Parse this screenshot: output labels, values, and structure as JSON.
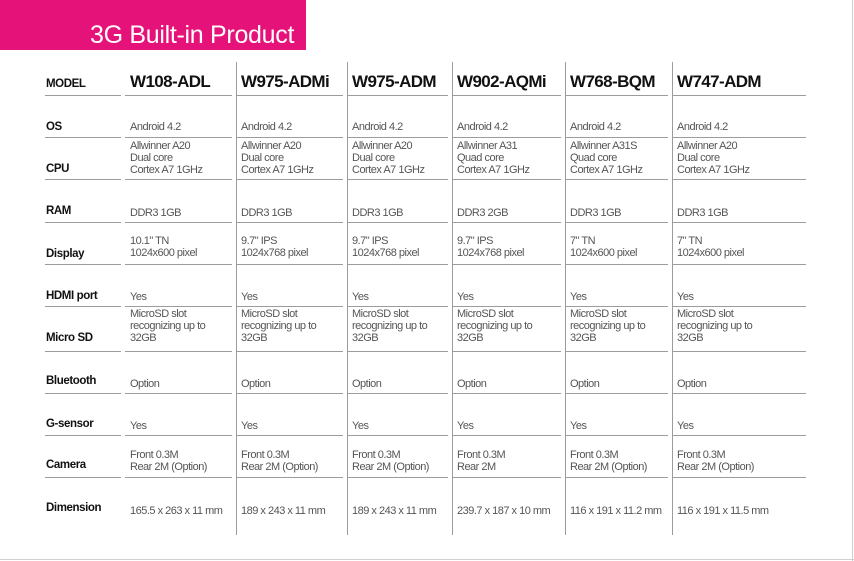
{
  "title": "3G Built-in Product",
  "rows": [
    {
      "label": "MODEL",
      "values": [
        "W108-ADL",
        "W975-ADMi",
        "W975-ADM",
        "W902-AQMi",
        "W768-BQM",
        "W747-ADM"
      ]
    },
    {
      "label": "OS",
      "values": [
        "Android 4.2",
        "Android 4.2",
        "Android 4.2",
        "Android 4.2",
        "Android 4.2",
        "Android 4.2"
      ]
    },
    {
      "label": "CPU",
      "values": [
        [
          "Allwinner A20",
          "Dual core",
          "Cortex A7 1GHz"
        ],
        [
          "Allwinner A20",
          "Dual core",
          "Cortex A7 1GHz"
        ],
        [
          "Allwinner A20",
          "Dual core",
          "Cortex A7 1GHz"
        ],
        [
          "Allwinner A31",
          "Quad core",
          "Cortex A7 1GHz"
        ],
        [
          "Allwinner A31S",
          "Quad core",
          "Cortex A7 1GHz"
        ],
        [
          "Allwinner A20",
          "Dual core",
          "Cortex A7 1GHz"
        ]
      ]
    },
    {
      "label": "RAM",
      "values": [
        "DDR3 1GB",
        "DDR3 1GB",
        "DDR3 1GB",
        "DDR3 2GB",
        "DDR3 1GB",
        "DDR3 1GB"
      ]
    },
    {
      "label": "Display",
      "values": [
        [
          "10.1\" TN",
          "1024x600 pixel"
        ],
        [
          "9.7\" IPS",
          "1024x768 pixel"
        ],
        [
          "9.7\" IPS",
          "1024x768 pixel"
        ],
        [
          "9.7\" IPS",
          "1024x768 pixel"
        ],
        [
          "7\" TN",
          "1024x600 pixel"
        ],
        [
          "7\" TN",
          "1024x600 pixel"
        ]
      ]
    },
    {
      "label": "HDMI port",
      "values": [
        "Yes",
        "Yes",
        "Yes",
        "Yes",
        "Yes",
        "Yes"
      ]
    },
    {
      "label": "Micro SD",
      "values": [
        [
          "MicroSD slot",
          "recognizing up to",
          "32GB"
        ],
        [
          "MicroSD slot",
          "recognizing up to",
          "32GB"
        ],
        [
          "MicroSD slot",
          "recognizing up to",
          "32GB"
        ],
        [
          "MicroSD slot",
          "recognizing up to",
          "32GB"
        ],
        [
          "MicroSD slot",
          "recognizing up to",
          "32GB"
        ],
        [
          "MicroSD slot",
          "recognizing up to",
          "32GB"
        ]
      ]
    },
    {
      "label": "Bluetooth",
      "values": [
        "Option",
        "Option",
        "Option",
        "Option",
        "Option",
        "Option"
      ]
    },
    {
      "label": "G-sensor",
      "values": [
        "Yes",
        "Yes",
        "Yes",
        "Yes",
        "Yes",
        "Yes"
      ]
    },
    {
      "label": "Camera",
      "values": [
        [
          "Front 0.3M",
          "Rear 2M (Option)"
        ],
        [
          "Front 0.3M",
          "Rear 2M (Option)"
        ],
        [
          "Front 0.3M",
          "Rear 2M (Option)"
        ],
        [
          "Front 0.3M",
          "Rear 2M"
        ],
        [
          "Front 0.3M",
          "Rear 2M (Option)"
        ],
        [
          "Front 0.3M",
          "Rear 2M (Option)"
        ]
      ]
    },
    {
      "label": "Dimension",
      "values": [
        "165.5 x 263 x 11 mm",
        "189 x 243 x 11 mm",
        "189 x 243 x 11 mm",
        "239.7 x 187 x 10 mm",
        "116 x 191 x 11.2 mm",
        "116 x 191 x 11.5 mm"
      ]
    }
  ]
}
